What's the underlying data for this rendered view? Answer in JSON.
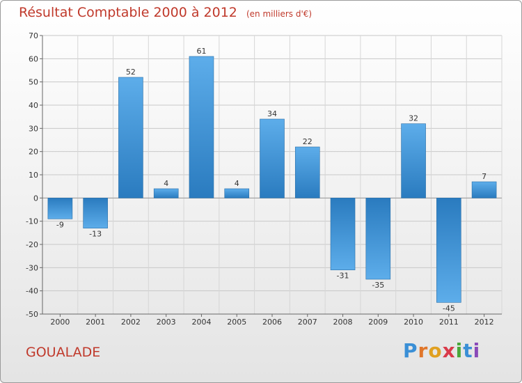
{
  "chart_data": {
    "type": "bar",
    "title": "Résultat Comptable 2000 à 2012",
    "unit_label": "(en milliers d'€)",
    "xlabel": "",
    "ylabel": "",
    "categories": [
      "2000",
      "2001",
      "2002",
      "2003",
      "2004",
      "2005",
      "2006",
      "2007",
      "2008",
      "2009",
      "2010",
      "2011",
      "2012"
    ],
    "values": [
      -9,
      -13,
      52,
      4,
      61,
      4,
      34,
      22,
      -31,
      -35,
      32,
      -45,
      7
    ],
    "ylim": [
      -50,
      70
    ],
    "yticks": [
      -50,
      -40,
      -30,
      -20,
      -10,
      0,
      10,
      20,
      30,
      40,
      50,
      60,
      70
    ],
    "grid": true,
    "legend": "none"
  },
  "footer": {
    "town": "GOUALADE",
    "brand_letters": [
      "P",
      "r",
      "o",
      "x",
      "i",
      "t",
      "i"
    ]
  },
  "colors": {
    "title": "#c0392b",
    "bar_dark": "#2a7bbf",
    "bar_light": "#5dadea",
    "brand": [
      "#3a8fd6",
      "#e0762a",
      "#e0a020",
      "#d93a4a",
      "#4aa83a",
      "#3a8fd6",
      "#8a4ab8"
    ]
  }
}
